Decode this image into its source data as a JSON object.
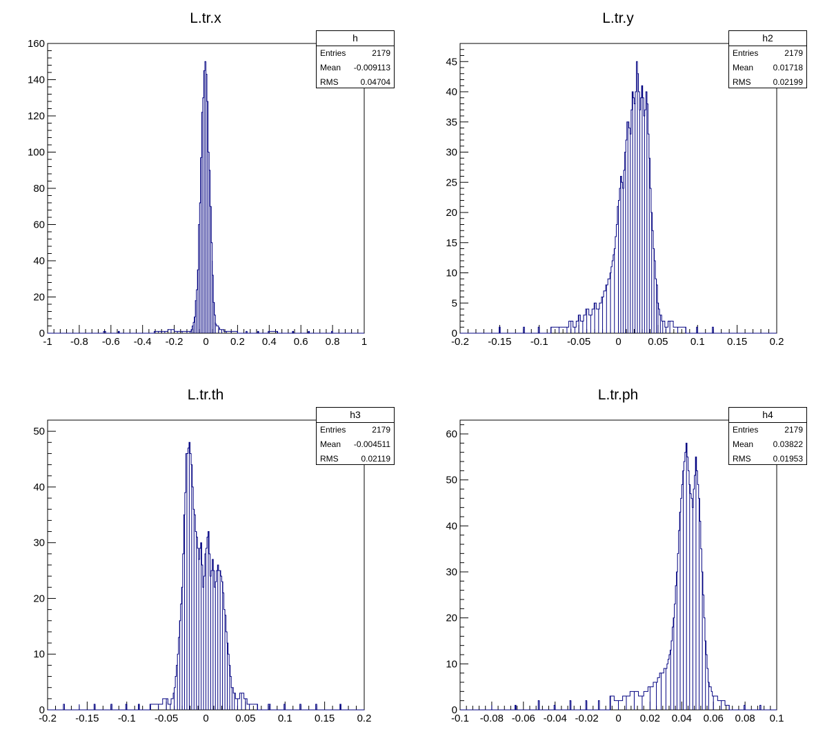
{
  "stats_labels": {
    "entries": "Entries",
    "mean": "Mean",
    "rms": "RMS"
  },
  "colors": {
    "histogram": "#000080",
    "axis": "#000000"
  },
  "panels": [
    {
      "title": "L.tr.x",
      "stats": {
        "name": "h",
        "entries": "2179",
        "mean": "-0.009113",
        "rms": "0.04704"
      }
    },
    {
      "title": "L.tr.y",
      "stats": {
        "name": "h2",
        "entries": "2179",
        "mean": "0.01718",
        "rms": "0.02199"
      }
    },
    {
      "title": "L.tr.th",
      "stats": {
        "name": "h3",
        "entries": "2179",
        "mean": "-0.004511",
        "rms": "0.02119"
      }
    },
    {
      "title": "L.tr.ph",
      "stats": {
        "name": "h4",
        "entries": "2179",
        "mean": "0.03822",
        "rms": "0.01953"
      }
    }
  ],
  "chart_data": [
    {
      "type": "bar",
      "title": "L.tr.x",
      "xlim": [
        -1,
        1
      ],
      "ylim": [
        0,
        160
      ],
      "xticks": [
        -1,
        -0.8,
        -0.6,
        -0.4,
        -0.2,
        0,
        0.2,
        0.4,
        0.6,
        0.8,
        1
      ],
      "xtick_labels": [
        "-1",
        "-0.8",
        "-0.6",
        "-0.4",
        "-0.2",
        "0",
        "0.2",
        "0.4",
        "0.6",
        "0.8",
        "1"
      ],
      "yticks": [
        0,
        20,
        40,
        60,
        80,
        100,
        120,
        140,
        160
      ],
      "ytick_labels": [
        "0",
        "20",
        "40",
        "60",
        "80",
        "100",
        "120",
        "140",
        "160"
      ],
      "x": [
        -0.64,
        -0.55,
        -0.32,
        -0.3,
        -0.28,
        -0.26,
        -0.22,
        -0.18,
        -0.15,
        -0.12,
        -0.1,
        -0.09,
        -0.08,
        -0.07,
        -0.06,
        -0.05,
        -0.04,
        -0.03,
        -0.02,
        -0.01,
        0.0,
        0.01,
        0.02,
        0.03,
        0.04,
        0.05,
        0.06,
        0.08,
        0.1,
        0.13,
        0.16,
        0.2,
        0.26,
        0.33,
        0.4,
        0.45,
        0.55,
        0.65,
        0.8
      ],
      "values": [
        1,
        1,
        1,
        1,
        1,
        1,
        2,
        1,
        1,
        1,
        1,
        2,
        4,
        9,
        18,
        35,
        60,
        97,
        122,
        145,
        150,
        128,
        100,
        70,
        40,
        17,
        6,
        3,
        2,
        1,
        1,
        1,
        1,
        1,
        1,
        1,
        1,
        1,
        1
      ]
    },
    {
      "type": "bar",
      "title": "L.tr.y",
      "xlim": [
        -0.2,
        0.2
      ],
      "ylim": [
        0,
        48
      ],
      "xticks": [
        -0.2,
        -0.15,
        -0.1,
        -0.05,
        0,
        0.05,
        0.1,
        0.15,
        0.2
      ],
      "xtick_labels": [
        "-0.2",
        "-0.15",
        "-0.1",
        "-0.05",
        "0",
        "0.05",
        "0.1",
        "0.15",
        "0.2"
      ],
      "yticks": [
        0,
        5,
        10,
        15,
        20,
        25,
        30,
        35,
        40,
        45
      ],
      "ytick_labels": [
        "0",
        "5",
        "10",
        "15",
        "20",
        "25",
        "30",
        "35",
        "40",
        "45"
      ],
      "x": [
        -0.15,
        -0.12,
        -0.1,
        -0.085,
        -0.075,
        -0.065,
        -0.06,
        -0.055,
        -0.05,
        -0.045,
        -0.04,
        -0.035,
        -0.03,
        -0.025,
        -0.02,
        -0.015,
        -0.01,
        -0.005,
        0.0,
        0.003,
        0.006,
        0.009,
        0.012,
        0.015,
        0.018,
        0.021,
        0.024,
        0.027,
        0.03,
        0.033,
        0.036,
        0.039,
        0.042,
        0.045,
        0.048,
        0.05,
        0.053,
        0.056,
        0.06,
        0.065,
        0.075,
        0.085,
        0.1,
        0.12
      ],
      "values": [
        1,
        1,
        1,
        1,
        1,
        1,
        2,
        1,
        3,
        2,
        4,
        3,
        5,
        4,
        6,
        8,
        10,
        14,
        21,
        26,
        24,
        30,
        35,
        33,
        40,
        38,
        45,
        37,
        41,
        36,
        40,
        29,
        20,
        14,
        9,
        5,
        3,
        2,
        1,
        2,
        1,
        1,
        1,
        1
      ]
    },
    {
      "type": "bar",
      "title": "L.tr.th",
      "xlim": [
        -0.2,
        0.2
      ],
      "ylim": [
        0,
        52
      ],
      "xticks": [
        -0.2,
        -0.15,
        -0.1,
        -0.05,
        0,
        0.05,
        0.1,
        0.15,
        0.2
      ],
      "xtick_labels": [
        "-0.2",
        "-0.15",
        "-0.1",
        "-0.05",
        "0",
        "0.05",
        "0.1",
        "0.15",
        "0.2"
      ],
      "yticks": [
        0,
        10,
        20,
        30,
        40,
        50
      ],
      "ytick_labels": [
        "0",
        "10",
        "20",
        "30",
        "40",
        "50"
      ],
      "x": [
        -0.18,
        -0.16,
        -0.14,
        -0.12,
        -0.1,
        -0.085,
        -0.07,
        -0.06,
        -0.05,
        -0.045,
        -0.04,
        -0.036,
        -0.033,
        -0.03,
        -0.027,
        -0.024,
        -0.021,
        -0.018,
        -0.015,
        -0.012,
        -0.009,
        -0.006,
        -0.003,
        0.0,
        0.003,
        0.006,
        0.009,
        0.012,
        0.015,
        0.018,
        0.021,
        0.024,
        0.027,
        0.03,
        0.033,
        0.036,
        0.04,
        0.045,
        0.05,
        0.055,
        0.065,
        0.08,
        0.1,
        0.12,
        0.14,
        0.17
      ],
      "values": [
        1,
        1,
        1,
        1,
        1,
        1,
        1,
        1,
        2,
        1,
        3,
        8,
        16,
        22,
        35,
        46,
        48,
        44,
        36,
        32,
        27,
        30,
        22,
        28,
        32,
        24,
        27,
        22,
        26,
        25,
        23,
        18,
        12,
        8,
        4,
        3,
        2,
        3,
        2,
        1,
        1,
        1,
        1,
        1,
        1,
        1
      ]
    },
    {
      "type": "bar",
      "title": "L.tr.ph",
      "xlim": [
        -0.1,
        0.1
      ],
      "ylim": [
        0,
        63
      ],
      "xticks": [
        -0.1,
        -0.08,
        -0.06,
        -0.04,
        -0.02,
        0,
        0.02,
        0.04,
        0.06,
        0.08,
        0.1
      ],
      "xtick_labels": [
        "-0.1",
        "-0.08",
        "-0.06",
        "-0.04",
        "-0.02",
        "0",
        "0.02",
        "0.04",
        "0.06",
        "0.08",
        "0.1"
      ],
      "yticks": [
        0,
        10,
        20,
        30,
        40,
        50,
        60
      ],
      "ytick_labels": [
        "0",
        "10",
        "20",
        "30",
        "40",
        "50",
        "60"
      ],
      "x": [
        -0.08,
        -0.065,
        -0.05,
        -0.04,
        -0.03,
        -0.02,
        -0.012,
        -0.005,
        0.0,
        0.005,
        0.01,
        0.015,
        0.02,
        0.024,
        0.027,
        0.03,
        0.033,
        0.035,
        0.037,
        0.039,
        0.041,
        0.043,
        0.045,
        0.047,
        0.049,
        0.051,
        0.053,
        0.055,
        0.057,
        0.06,
        0.065,
        0.07,
        0.08,
        0.09
      ],
      "values": [
        1,
        1,
        2,
        1,
        2,
        2,
        2,
        3,
        2,
        3,
        4,
        3,
        5,
        6,
        8,
        9,
        13,
        20,
        30,
        43,
        52,
        58,
        49,
        44,
        55,
        46,
        30,
        15,
        6,
        3,
        2,
        1,
        1,
        1
      ]
    }
  ]
}
